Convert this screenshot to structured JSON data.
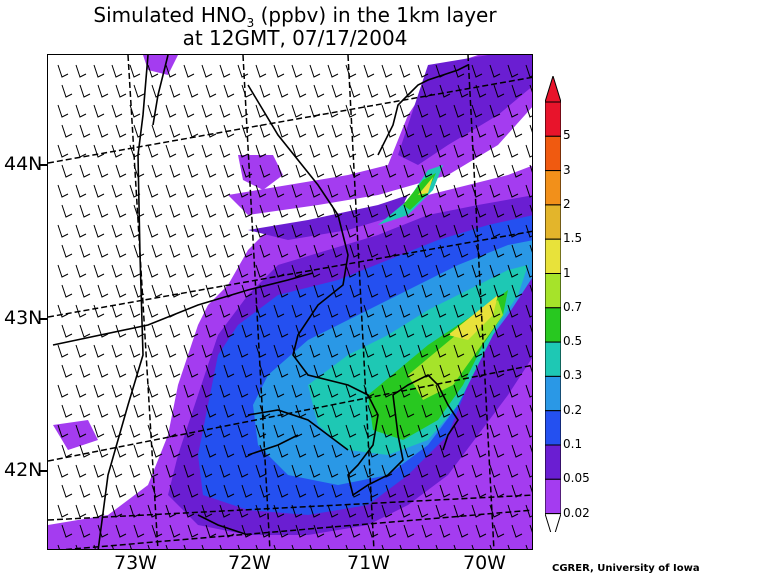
{
  "title": {
    "line1_pre": "Simulated HNO",
    "line1_sub": "3",
    "line1_post": " (ppbv) in the 1km layer",
    "line2": "at 12GMT, 07/17/2004"
  },
  "latitude_labels": [
    "44N",
    "43N",
    "42N"
  ],
  "longitude_labels": [
    "73W",
    "72W",
    "71W",
    "70W"
  ],
  "colorbar": {
    "labels": [
      "5",
      "3",
      "2",
      "1.5",
      "1",
      "0.7",
      "0.5",
      "0.3",
      "0.2",
      "0.1",
      "0.05",
      "0.02"
    ],
    "colors": [
      "#e8142b",
      "#f05a10",
      "#f2901a",
      "#e3b52b",
      "#e8e23a",
      "#a6e32a",
      "#28c820",
      "#1ec8b4",
      "#2a98e6",
      "#2450f0",
      "#6a1ed2",
      "#a43cf0"
    ],
    "below_color": "#ffffff"
  },
  "credit": "CGRER, University of Iowa"
}
